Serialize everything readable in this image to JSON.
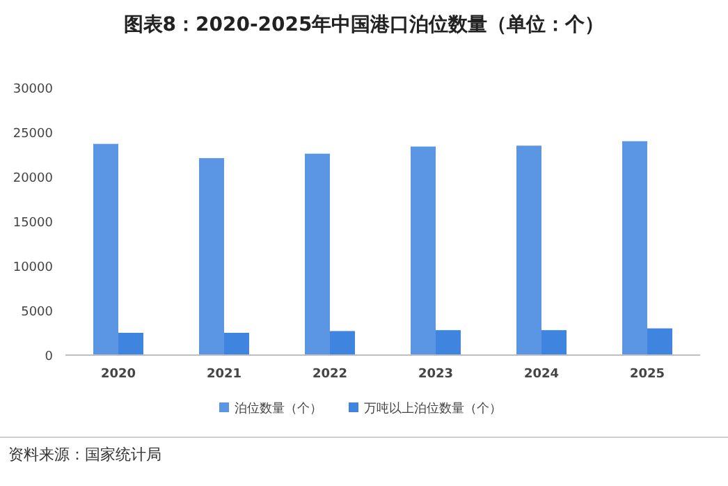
{
  "chart_data": {
    "type": "bar",
    "title": "图表8：2020-2025年中国港口泊位数量（单位：个）",
    "categories": [
      "2020",
      "2021",
      "2022",
      "2023",
      "2024",
      "2025"
    ],
    "series": [
      {
        "name": "泊位数量（个）",
        "color": "#5b96e5",
        "values": [
          23700,
          22100,
          22600,
          23400,
          23500,
          24000
        ]
      },
      {
        "name": "万吨以上泊位数量（个）",
        "color": "#3f85e0",
        "values": [
          2500,
          2500,
          2700,
          2800,
          2800,
          3000
        ]
      }
    ],
    "ylim": [
      0,
      30000
    ],
    "yticks": [
      0,
      5000,
      10000,
      15000,
      20000,
      25000,
      30000
    ],
    "legend": "bottom",
    "annotations": [
      "资料来源：国家统计局"
    ]
  }
}
